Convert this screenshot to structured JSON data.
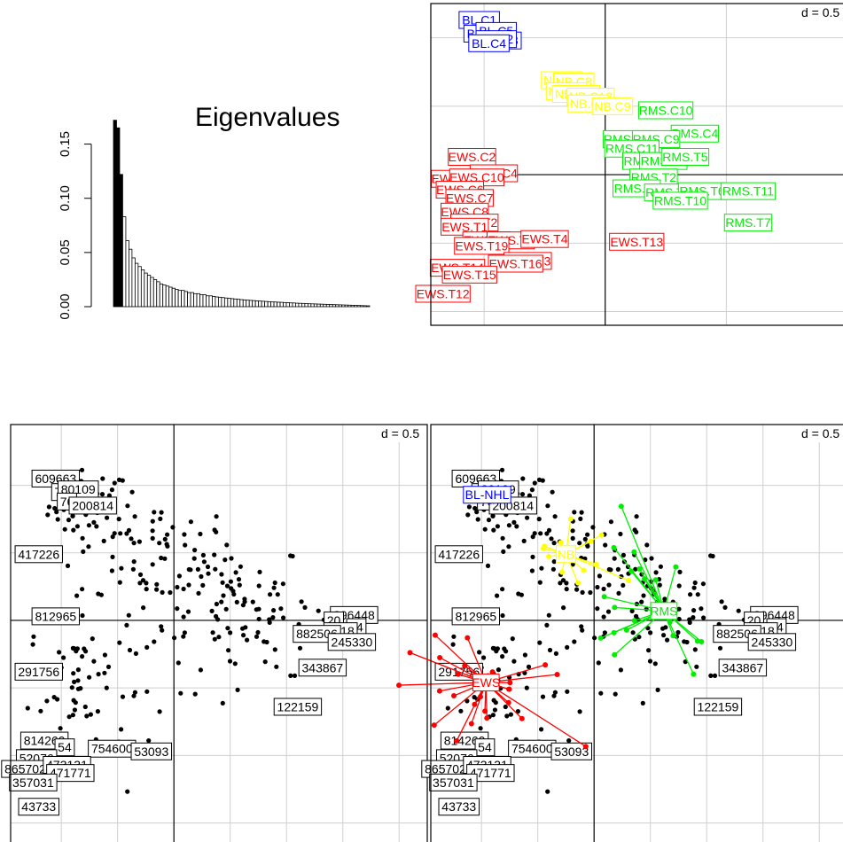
{
  "chart_data": [
    {
      "type": "bar",
      "title": "Eigenvalues",
      "yticks": [
        "0.00",
        "0.05",
        "0.10",
        "0.15"
      ],
      "ylim": [
        0,
        0.18
      ],
      "highlight_count": 3,
      "values": [
        0.172,
        0.165,
        0.122,
        0.083,
        0.061,
        0.053,
        0.045,
        0.04,
        0.037,
        0.034,
        0.031,
        0.029,
        0.027,
        0.025,
        0.023,
        0.021,
        0.02,
        0.019,
        0.018,
        0.017,
        0.016,
        0.015,
        0.015,
        0.014,
        0.013,
        0.013,
        0.012,
        0.012,
        0.011,
        0.011,
        0.01,
        0.01,
        0.0095,
        0.009,
        0.0087,
        0.0084,
        0.008,
        0.0077,
        0.0074,
        0.0071,
        0.0068,
        0.0065,
        0.0062,
        0.006,
        0.0058,
        0.0056,
        0.0054,
        0.0052,
        0.005,
        0.0048,
        0.0046,
        0.0044,
        0.0043,
        0.0041,
        0.004,
        0.0038,
        0.0037,
        0.0035,
        0.0034,
        0.0032,
        0.0031,
        0.003,
        0.0028,
        0.0027,
        0.0026,
        0.0025,
        0.0024,
        0.0023,
        0.0022,
        0.0021,
        0.002,
        0.0019,
        0.0018,
        0.0017,
        0.0016,
        0.0015,
        0.0014,
        0.0013,
        0.0012,
        0.0011,
        0.001,
        0.0009,
        0.0008
      ]
    },
    {
      "type": "scatter",
      "scale": "d = 0.5",
      "xlim": [
        -0.72,
        1.0
      ],
      "ylim": [
        -1.1,
        1.25
      ],
      "colors": {
        "BL": "#0000ff",
        "NB": "#ffff00",
        "RMS": "#00ee00",
        "EWS": "#ff0000"
      },
      "labels": [
        {
          "text": "BL.C1",
          "g": "BL",
          "x": -0.52,
          "y": 1.13
        },
        {
          "text": "BL.C8",
          "g": "BL",
          "x": -0.5,
          "y": 1.03
        },
        {
          "text": "BL.C5",
          "g": "BL",
          "x": -0.45,
          "y": 1.05
        },
        {
          "text": "BL.C3",
          "g": "BL",
          "x": -0.43,
          "y": 0.98
        },
        {
          "text": "BL.C2",
          "g": "BL",
          "x": -0.45,
          "y": 0.99
        },
        {
          "text": "BL.C4",
          "g": "BL",
          "x": -0.48,
          "y": 0.96
        },
        {
          "text": "NB.C1",
          "g": "NB",
          "x": -0.18,
          "y": 0.69
        },
        {
          "text": "NB.C8",
          "g": "NB",
          "x": -0.13,
          "y": 0.68
        },
        {
          "text": "NB.C3",
          "g": "NB",
          "x": -0.16,
          "y": 0.61
        },
        {
          "text": "NB.C11",
          "g": "NB",
          "x": -0.12,
          "y": 0.59
        },
        {
          "text": "NB.C12",
          "g": "NB",
          "x": -0.06,
          "y": 0.57
        },
        {
          "text": "NB.C7",
          "g": "NB",
          "x": -0.07,
          "y": 0.52
        },
        {
          "text": "NB.C9",
          "g": "NB",
          "x": 0.03,
          "y": 0.5
        },
        {
          "text": "RMS.C10",
          "g": "RMS",
          "x": 0.25,
          "y": 0.47
        },
        {
          "text": "RMS.C4",
          "g": "RMS",
          "x": 0.37,
          "y": 0.3
        },
        {
          "text": "RMS.C8",
          "g": "RMS",
          "x": 0.09,
          "y": 0.26
        },
        {
          "text": "RMS.C9",
          "g": "RMS",
          "x": 0.21,
          "y": 0.26
        },
        {
          "text": "RMS.C11",
          "g": "RMS",
          "x": 0.11,
          "y": 0.19
        },
        {
          "text": "RMS.T1",
          "g": "RMS",
          "x": 0.17,
          "y": 0.1
        },
        {
          "text": "RMS.T3",
          "g": "RMS",
          "x": 0.24,
          "y": 0.1
        },
        {
          "text": "RMS.T5",
          "g": "RMS",
          "x": 0.33,
          "y": 0.13
        },
        {
          "text": "RMS.T2",
          "g": "RMS",
          "x": 0.2,
          "y": -0.02
        },
        {
          "text": "RMS.T4",
          "g": "RMS",
          "x": 0.13,
          "y": -0.1
        },
        {
          "text": "RMS.T8",
          "g": "RMS",
          "x": 0.26,
          "y": -0.13
        },
        {
          "text": "RMS.T6",
          "g": "RMS",
          "x": 0.4,
          "y": -0.12
        },
        {
          "text": "RMS.T11",
          "g": "RMS",
          "x": 0.59,
          "y": -0.12
        },
        {
          "text": "RMS.T10",
          "g": "RMS",
          "x": 0.31,
          "y": -0.19
        },
        {
          "text": "RMS.T7",
          "g": "RMS",
          "x": 0.59,
          "y": -0.35
        },
        {
          "text": "EWS.C2",
          "g": "EWS",
          "x": -0.55,
          "y": 0.13
        },
        {
          "text": "EWS.C4",
          "g": "EWS",
          "x": -0.46,
          "y": 0.01
        },
        {
          "text": "EWS.C3",
          "g": "EWS",
          "x": -0.62,
          "y": -0.03
        },
        {
          "text": "EWS.C10",
          "g": "EWS",
          "x": -0.53,
          "y": -0.02
        },
        {
          "text": "EWS.C6",
          "g": "EWS",
          "x": -0.6,
          "y": -0.11
        },
        {
          "text": "EWS.C7",
          "g": "EWS",
          "x": -0.56,
          "y": -0.17
        },
        {
          "text": "EWS.C8",
          "g": "EWS",
          "x": -0.58,
          "y": -0.27
        },
        {
          "text": "EWS.T2",
          "g": "EWS",
          "x": -0.54,
          "y": -0.35
        },
        {
          "text": "EWS.T1",
          "g": "EWS",
          "x": -0.58,
          "y": -0.38
        },
        {
          "text": "EWS.T9",
          "g": "EWS",
          "x": -0.49,
          "y": -0.48
        },
        {
          "text": "EWS.T6",
          "g": "EWS",
          "x": -0.39,
          "y": -0.48
        },
        {
          "text": "EWS.T4",
          "g": "EWS",
          "x": -0.25,
          "y": -0.47
        },
        {
          "text": "EWS.T13",
          "g": "EWS",
          "x": 0.13,
          "y": -0.49
        },
        {
          "text": "EWS.T19",
          "g": "EWS",
          "x": -0.51,
          "y": -0.52
        },
        {
          "text": "EWS.T3",
          "g": "EWS",
          "x": -0.32,
          "y": -0.63
        },
        {
          "text": "EWS.T14",
          "g": "EWS",
          "x": -0.61,
          "y": -0.68
        },
        {
          "text": "EWS.T16",
          "g": "EWS",
          "x": -0.37,
          "y": -0.65
        },
        {
          "text": "EWS.T15",
          "g": "EWS",
          "x": -0.56,
          "y": -0.73
        },
        {
          "text": "EWS.T12",
          "g": "EWS",
          "x": -0.67,
          "y": -0.87
        }
      ]
    },
    {
      "type": "scatter",
      "scale": "d = 0.5",
      "xlim": [
        -1.45,
        2.25
      ],
      "ylim": [
        -1.7,
        1.45
      ],
      "labels": [
        {
          "text": "609663",
          "x": -1.05,
          "y": 1.05
        },
        {
          "text": "74",
          "x": -1.0,
          "y": 0.95
        },
        {
          "text": "80109",
          "x": -0.85,
          "y": 0.97
        },
        {
          "text": "76",
          "x": -0.95,
          "y": 0.88
        },
        {
          "text": "200814",
          "x": -0.72,
          "y": 0.85
        },
        {
          "text": "417226",
          "x": -1.2,
          "y": 0.49
        },
        {
          "text": "812965",
          "x": -1.05,
          "y": 0.03
        },
        {
          "text": "296448",
          "x": 1.6,
          "y": 0.04
        },
        {
          "text": "20",
          "x": 1.42,
          "y": 0.0
        },
        {
          "text": "34",
          "x": 1.62,
          "y": -0.05
        },
        {
          "text": "4618",
          "x": 1.48,
          "y": -0.08
        },
        {
          "text": "882506",
          "x": 1.27,
          "y": -0.1
        },
        {
          "text": "245330",
          "x": 1.58,
          "y": -0.16
        },
        {
          "text": "343867",
          "x": 1.32,
          "y": -0.35
        },
        {
          "text": "291756",
          "x": -1.2,
          "y": -0.38
        },
        {
          "text": "122159",
          "x": 1.1,
          "y": -0.64
        },
        {
          "text": "814260",
          "x": -1.15,
          "y": -0.89
        },
        {
          "text": "54",
          "x": -0.97,
          "y": -0.94
        },
        {
          "text": "754600",
          "x": -0.55,
          "y": -0.95
        },
        {
          "text": "53093",
          "x": -0.2,
          "y": -0.97
        },
        {
          "text": "52076",
          "x": -1.22,
          "y": -1.02
        },
        {
          "text": "865702",
          "x": -1.32,
          "y": -1.1
        },
        {
          "text": "473131",
          "x": -0.95,
          "y": -1.07
        },
        {
          "text": "471771",
          "x": -0.92,
          "y": -1.13
        },
        {
          "text": "357031",
          "x": -1.25,
          "y": -1.2
        },
        {
          "text": "43733",
          "x": -1.2,
          "y": -1.38
        }
      ]
    },
    {
      "type": "scatter",
      "scale": "d = 0.5",
      "xlim": [
        -1.45,
        2.25
      ],
      "ylim": [
        -1.7,
        1.45
      ],
      "groups": [
        {
          "name": "BL-NHL",
          "color": "#0000ff",
          "x": -0.95,
          "y": 0.93
        },
        {
          "name": "NB",
          "color": "#ffff00",
          "x": -0.25,
          "y": 0.49
        },
        {
          "name": "RMS",
          "color": "#00ee00",
          "x": 0.62,
          "y": 0.07
        },
        {
          "name": "EWS",
          "color": "#ff0000",
          "x": -0.96,
          "y": -0.46
        }
      ]
    }
  ]
}
